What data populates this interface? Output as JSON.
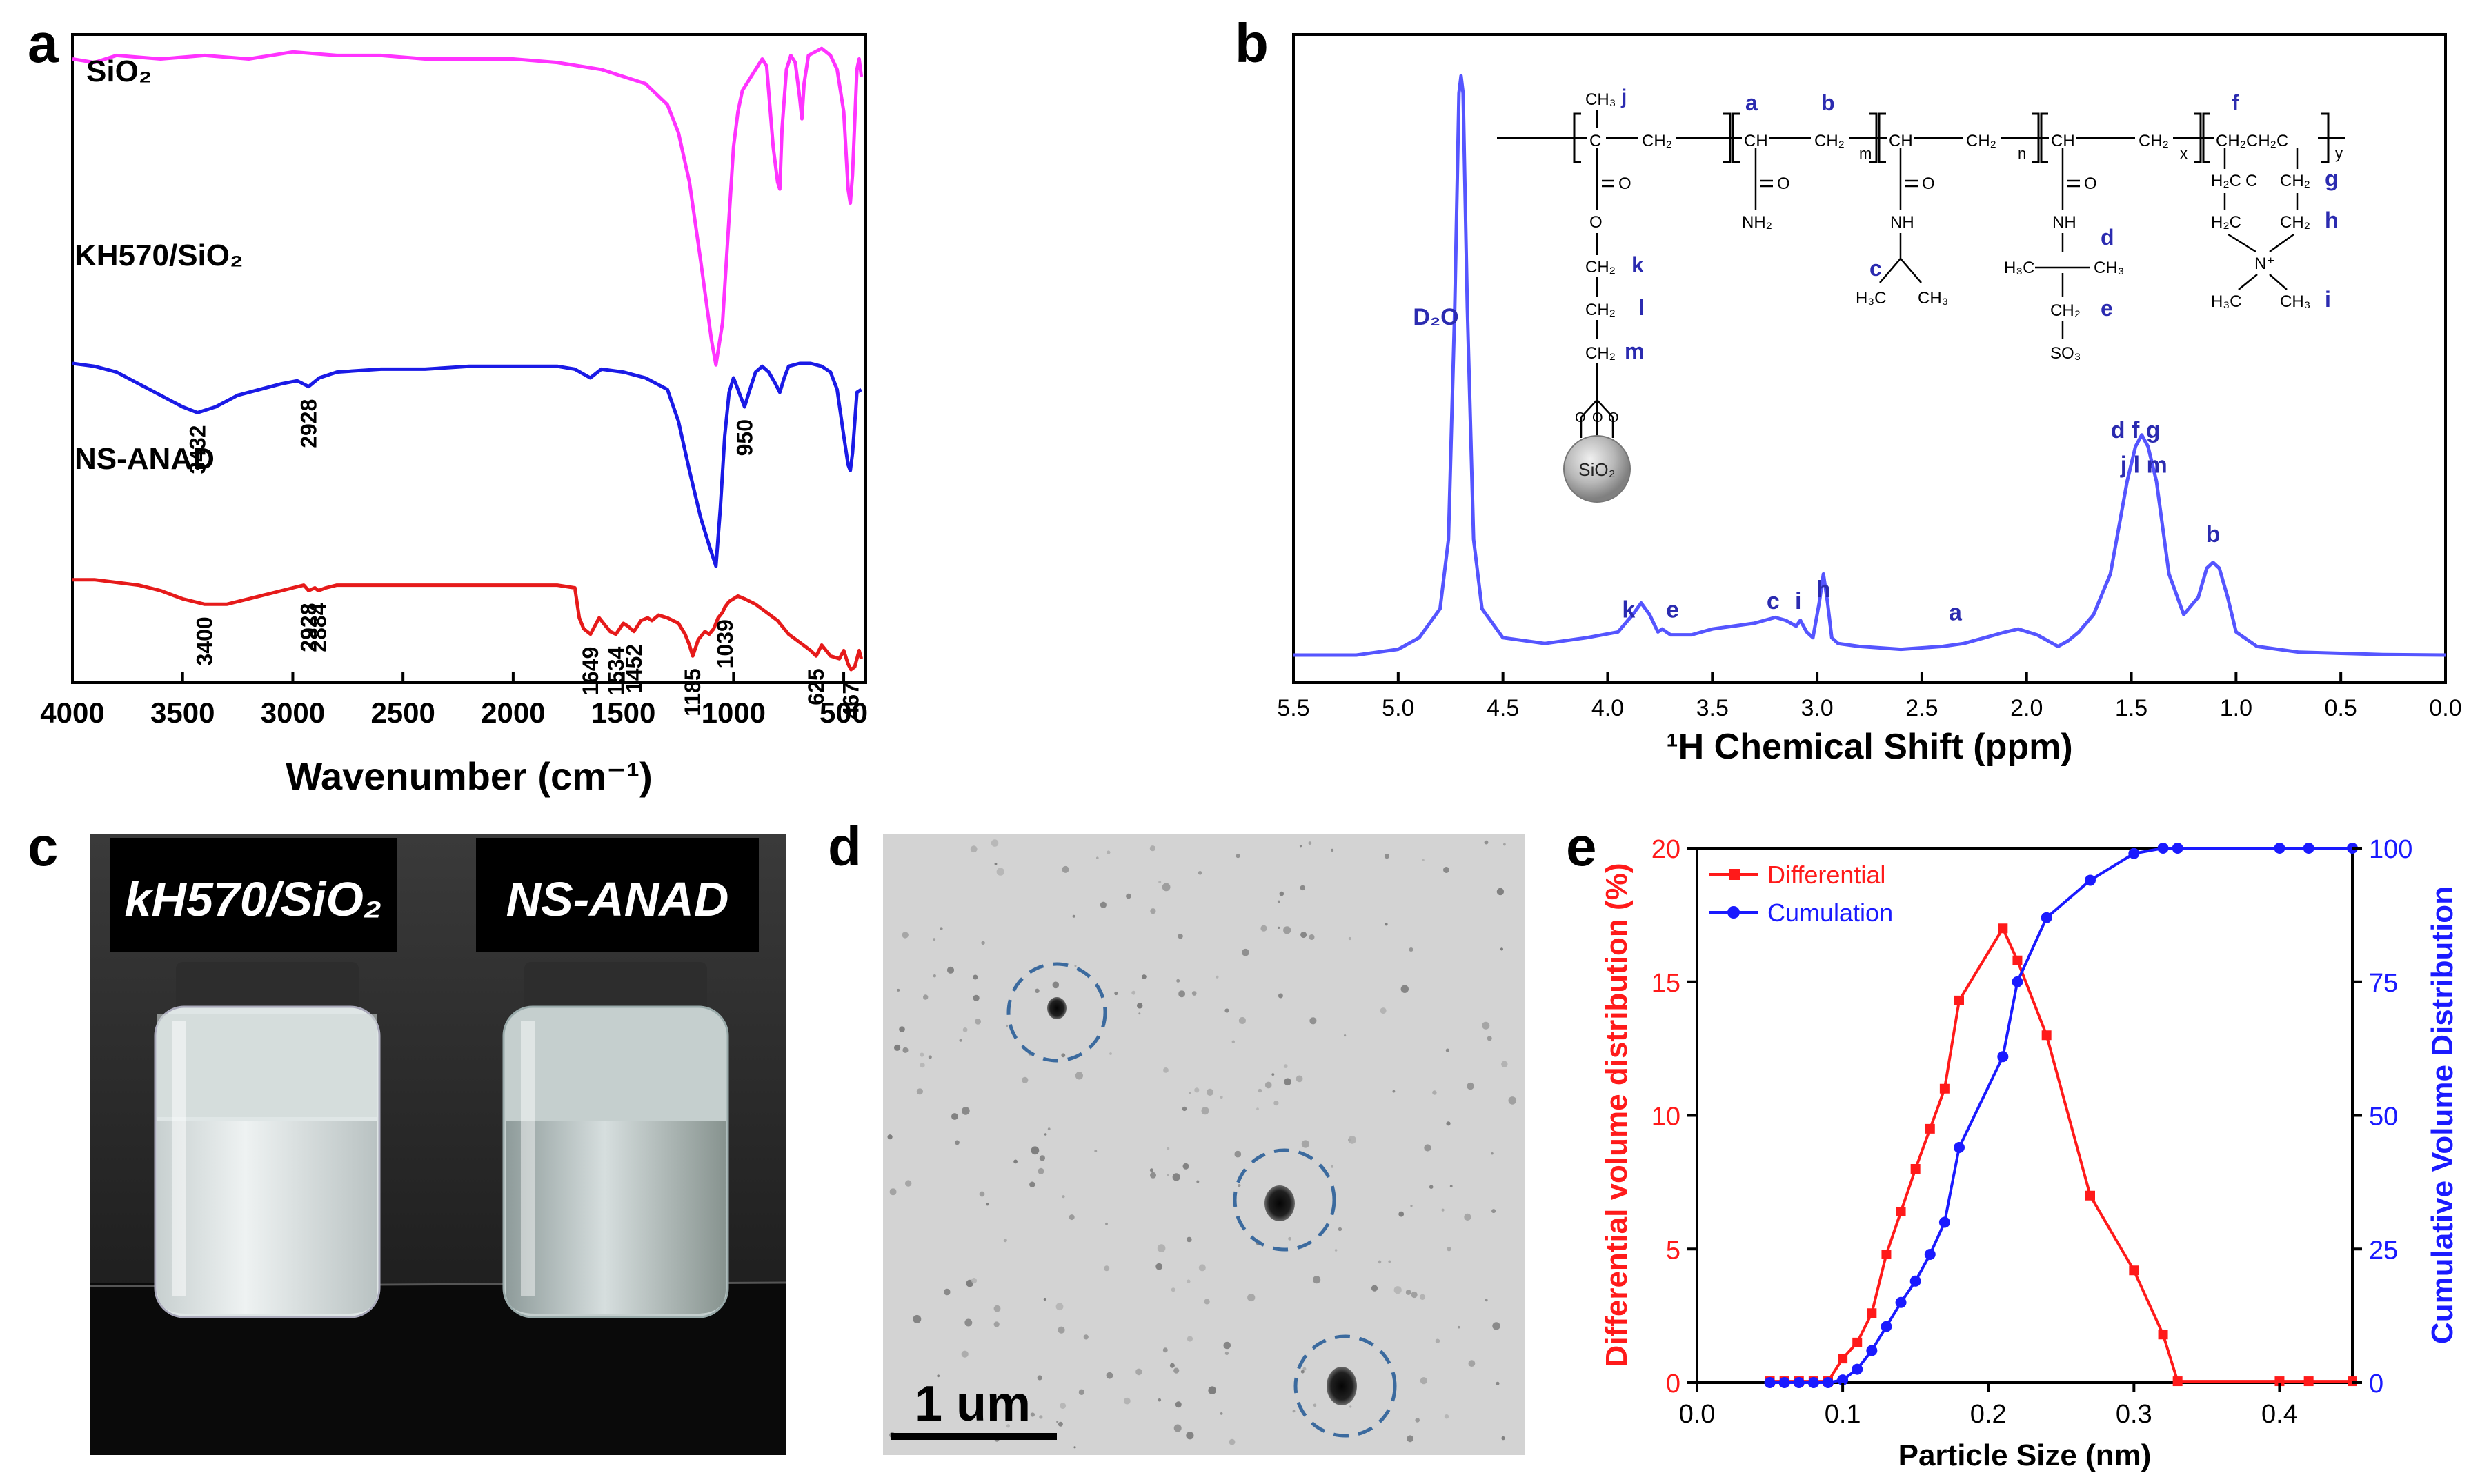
{
  "panel_letters": {
    "a": "a",
    "b": "b",
    "c": "c",
    "d": "d",
    "e": "e"
  },
  "chart_data": [
    {
      "id": "a",
      "type": "line",
      "xlabel": "Wavenumber (cm⁻¹)",
      "xlim": [
        4000,
        400
      ],
      "x_ticks": [
        4000,
        3500,
        3000,
        2500,
        2000,
        1500,
        1000,
        500
      ],
      "series": [
        {
          "name": "SiO₂",
          "color": "#ff33ff",
          "x": [
            4000,
            3900,
            3800,
            3600,
            3400,
            3200,
            3000,
            2800,
            2600,
            2400,
            2200,
            2000,
            1800,
            1600,
            1400,
            1300,
            1250,
            1200,
            1150,
            1100,
            1080,
            1050,
            1020,
            1000,
            980,
            960,
            900,
            870,
            850,
            820,
            800,
            790,
            780,
            760,
            740,
            720,
            700,
            690,
            680,
            660,
            600,
            560,
            530,
            500,
            480,
            470,
            460,
            440,
            430,
            420
          ],
          "y": [
            95,
            94,
            96,
            95,
            96,
            95,
            97,
            96,
            96,
            95,
            95,
            95,
            94,
            92,
            88,
            82,
            74,
            60,
            38,
            15,
            8,
            20,
            50,
            70,
            80,
            86,
            92,
            95,
            93,
            70,
            60,
            58,
            75,
            92,
            96,
            94,
            84,
            78,
            88,
            96,
            98,
            96,
            92,
            80,
            58,
            54,
            62,
            92,
            95,
            90
          ]
        },
        {
          "name": "KH570/SiO₂",
          "color": "#1a1ae6",
          "labels": [
            "3432",
            "2928",
            "950"
          ],
          "x": [
            4000,
            3900,
            3800,
            3700,
            3600,
            3500,
            3432,
            3350,
            3250,
            3150,
            3050,
            2980,
            2928,
            2880,
            2800,
            2600,
            2400,
            2200,
            2000,
            1800,
            1720,
            1650,
            1600,
            1500,
            1400,
            1300,
            1250,
            1200,
            1150,
            1110,
            1080,
            1060,
            1040,
            1020,
            1000,
            980,
            960,
            950,
            930,
            900,
            870,
            840,
            810,
            790,
            770,
            750,
            700,
            650,
            600,
            560,
            530,
            500,
            480,
            470,
            460,
            440,
            420
          ],
          "y": [
            65,
            64,
            62,
            58,
            54,
            50,
            48,
            50,
            54,
            56,
            58,
            59,
            57,
            60,
            62,
            63,
            63,
            64,
            64,
            64,
            63,
            60,
            63,
            62,
            60,
            56,
            45,
            28,
            12,
            2,
            -5,
            15,
            40,
            55,
            60,
            56,
            52,
            50,
            55,
            62,
            64,
            62,
            58,
            55,
            60,
            64,
            65,
            65,
            64,
            62,
            56,
            40,
            30,
            28,
            34,
            55,
            56
          ]
        },
        {
          "name": "NS-ANAD",
          "color": "#e61a1a",
          "labels": [
            "3400",
            "2928",
            "2884",
            "1649",
            "1534",
            "1452",
            "1185",
            "1039",
            "625",
            "467"
          ],
          "x": [
            4000,
            3900,
            3800,
            3700,
            3600,
            3500,
            3400,
            3300,
            3200,
            3100,
            3000,
            2950,
            2928,
            2900,
            2884,
            2850,
            2800,
            2600,
            2400,
            2200,
            2000,
            1800,
            1720,
            1700,
            1680,
            1649,
            1610,
            1590,
            1560,
            1534,
            1500,
            1480,
            1452,
            1420,
            1390,
            1370,
            1340,
            1300,
            1250,
            1220,
            1200,
            1185,
            1160,
            1130,
            1110,
            1090,
            1070,
            1050,
            1039,
            1020,
            1000,
            980,
            950,
            900,
            850,
            800,
            750,
            700,
            650,
            625,
            600,
            560,
            520,
            500,
            480,
            467,
            450,
            430,
            420
          ],
          "y": [
            34,
            34,
            33,
            32,
            30,
            27,
            25,
            25,
            27,
            29,
            31,
            32,
            30,
            31,
            30,
            31,
            32,
            32,
            32,
            32,
            32,
            32,
            31,
            20,
            16,
            14,
            20,
            18,
            15,
            14,
            18,
            17,
            15,
            19,
            20,
            19,
            21,
            20,
            18,
            14,
            10,
            6,
            12,
            15,
            14,
            16,
            20,
            22,
            24,
            26,
            27,
            28,
            27,
            25,
            22,
            19,
            14,
            11,
            8,
            6,
            10,
            6,
            5,
            8,
            3,
            1,
            2,
            8,
            5
          ]
        }
      ]
    },
    {
      "id": "b",
      "type": "line",
      "xlabel": "¹H Chemical Shift (ppm)",
      "xlim": [
        5.5,
        0.0
      ],
      "x_ticks": [
        5.5,
        5.0,
        4.5,
        4.0,
        3.5,
        3.0,
        2.5,
        2.0,
        1.5,
        1.0,
        0.5,
        0.0
      ],
      "series": [
        {
          "color": "#5555ff",
          "x": [
            5.5,
            5.2,
            5.0,
            4.9,
            4.8,
            4.76,
            4.73,
            4.71,
            4.7,
            4.69,
            4.67,
            4.64,
            4.6,
            4.5,
            4.3,
            4.1,
            3.95,
            3.88,
            3.84,
            3.8,
            3.76,
            3.74,
            3.7,
            3.6,
            3.5,
            3.4,
            3.3,
            3.2,
            3.15,
            3.1,
            3.08,
            3.05,
            3.02,
            2.99,
            2.97,
            2.95,
            2.93,
            2.9,
            2.8,
            2.6,
            2.4,
            2.3,
            2.2,
            2.1,
            2.04,
            1.95,
            1.85,
            1.8,
            1.75,
            1.68,
            1.6,
            1.52,
            1.48,
            1.45,
            1.42,
            1.38,
            1.32,
            1.25,
            1.18,
            1.14,
            1.11,
            1.08,
            1.04,
            1.0,
            0.9,
            0.7,
            0.5,
            0.3,
            0.0
          ],
          "y": [
            0,
            0,
            0.01,
            0.03,
            0.08,
            0.2,
            0.6,
            0.97,
            1.0,
            0.97,
            0.6,
            0.2,
            0.08,
            0.03,
            0.02,
            0.03,
            0.04,
            0.07,
            0.09,
            0.07,
            0.04,
            0.045,
            0.035,
            0.035,
            0.045,
            0.05,
            0.055,
            0.065,
            0.06,
            0.05,
            0.06,
            0.04,
            0.03,
            0.09,
            0.14,
            0.09,
            0.03,
            0.02,
            0.015,
            0.01,
            0.015,
            0.02,
            0.03,
            0.04,
            0.045,
            0.035,
            0.015,
            0.025,
            0.04,
            0.07,
            0.14,
            0.3,
            0.36,
            0.38,
            0.36,
            0.3,
            0.14,
            0.07,
            0.1,
            0.15,
            0.16,
            0.15,
            0.1,
            0.04,
            0.015,
            0.005,
            0.003,
            0.001,
            0
          ]
        }
      ],
      "peak_labels": [
        {
          "text": "D₂O",
          "x": 4.82,
          "y": 0.57
        },
        {
          "text": "k",
          "x": 3.9,
          "y": 0.065
        },
        {
          "text": "e",
          "x": 3.69,
          "y": 0.065
        },
        {
          "text": "c",
          "x": 3.21,
          "y": 0.08
        },
        {
          "text": "i",
          "x": 3.09,
          "y": 0.08
        },
        {
          "text": "h",
          "x": 2.97,
          "y": 0.1
        },
        {
          "text": "a",
          "x": 2.34,
          "y": 0.06
        },
        {
          "text": "d f g",
          "x": 1.48,
          "y": 0.375
        },
        {
          "text": "j l  m",
          "x": 1.44,
          "y": 0.315
        },
        {
          "text": "b",
          "x": 1.11,
          "y": 0.195
        }
      ]
    },
    {
      "id": "e",
      "type": "line",
      "xlabel": "Particle Size (nm)",
      "ylabel": "Differential volume distribution (%)",
      "ylabel_right": "Cumulative Volume Distribution",
      "xlim": [
        0.0,
        0.45
      ],
      "ylim": [
        0,
        20
      ],
      "ylim_right": [
        0,
        100
      ],
      "x_ticks": [
        0.0,
        0.1,
        0.2,
        0.3,
        0.4
      ],
      "y_ticks": [
        0,
        5,
        10,
        15,
        20
      ],
      "y_ticks_right": [
        0,
        25,
        50,
        75,
        100
      ],
      "legend": "top-left",
      "series": [
        {
          "name": "Differential",
          "color": "#ff1a1a",
          "marker": "square",
          "axis": "left",
          "x": [
            0.05,
            0.06,
            0.07,
            0.08,
            0.09,
            0.1,
            0.11,
            0.12,
            0.13,
            0.14,
            0.15,
            0.16,
            0.17,
            0.18,
            0.21,
            0.22,
            0.24,
            0.27,
            0.3,
            0.32,
            0.33,
            0.4,
            0.42,
            0.45
          ],
          "y": [
            0.05,
            0.05,
            0.05,
            0.05,
            0.05,
            0.9,
            1.5,
            2.6,
            4.8,
            6.4,
            8.0,
            9.5,
            11.0,
            14.3,
            17.0,
            15.8,
            13.0,
            7.0,
            4.2,
            1.8,
            0.05,
            0.05,
            0.05,
            0.05
          ]
        },
        {
          "name": "Cumulation",
          "color": "#1a1aff",
          "marker": "circle",
          "axis": "right",
          "x": [
            0.05,
            0.06,
            0.07,
            0.08,
            0.09,
            0.1,
            0.11,
            0.12,
            0.13,
            0.14,
            0.15,
            0.16,
            0.17,
            0.18,
            0.21,
            0.22,
            0.24,
            0.27,
            0.3,
            0.32,
            0.33,
            0.4,
            0.42,
            0.45
          ],
          "y": [
            0,
            0,
            0,
            0,
            0,
            0.5,
            2.5,
            6,
            10.5,
            15,
            19,
            24,
            30,
            44,
            61,
            75,
            87,
            94,
            99,
            100,
            100,
            100,
            100,
            100
          ]
        }
      ]
    }
  ],
  "panel_b_structure": {
    "labels": [
      "j",
      "a",
      "b",
      "k",
      "l",
      "m",
      "c",
      "d",
      "e",
      "f",
      "g",
      "h",
      "i"
    ],
    "subscripts": [
      "m",
      "n",
      "x",
      "y"
    ],
    "groups": [
      "CH₃",
      "CH₂",
      "CH",
      "C",
      "O",
      "NH₂",
      "NH",
      "H₃C",
      "CH₃",
      "SO₃",
      "H₂C",
      "N⁺",
      "SiO₂"
    ]
  },
  "panel_c": {
    "left_label": "kH570/SiO₂",
    "right_label": "NS-ANAD"
  },
  "panel_d": {
    "scale_bar": "1 um"
  }
}
